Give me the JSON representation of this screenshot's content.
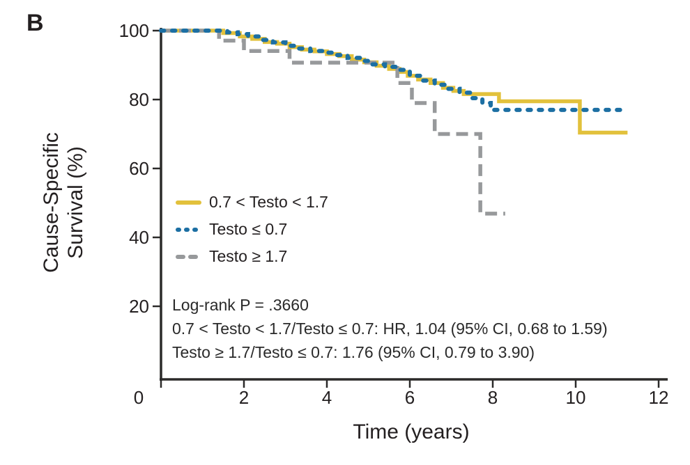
{
  "panel_label": "B",
  "colors": {
    "yellow": "#e2c13c",
    "blue": "#1c6fa3",
    "gray": "#97999b",
    "axis": "#2b2a29",
    "text": "#231f20"
  },
  "chart_data": {
    "type": "line",
    "subtype": "kaplan-meier-step",
    "xlabel": "Time (years)",
    "ylabel": "Cause-Specific Survival (%)",
    "ylabel_lines": [
      "Cause-Specific",
      "Survival (%)"
    ],
    "xlim": [
      0,
      12.25
    ],
    "ylim": [
      0,
      100
    ],
    "xticks": [
      0,
      2,
      4,
      6,
      8,
      10,
      12
    ],
    "yticks": [
      20,
      40,
      60,
      80,
      100
    ],
    "grid": false,
    "legend_position": "inside-left-middle",
    "series": [
      {
        "name": "0.7 < Testo < 1.7",
        "style": "solid",
        "color": "#e2c13c",
        "points": [
          [
            0,
            100
          ],
          [
            1.5,
            99.3
          ],
          [
            1.9,
            98.3
          ],
          [
            2.2,
            97.6
          ],
          [
            2.5,
            96.7
          ],
          [
            2.8,
            96.2
          ],
          [
            3.1,
            95.2
          ],
          [
            3.4,
            94.5
          ],
          [
            3.7,
            94.0
          ],
          [
            4.0,
            93.2
          ],
          [
            4.3,
            92.6
          ],
          [
            4.6,
            91.6
          ],
          [
            4.9,
            90.8
          ],
          [
            5.2,
            89.8
          ],
          [
            5.5,
            88.9
          ],
          [
            5.75,
            88.0
          ],
          [
            5.95,
            86.9
          ],
          [
            6.2,
            85.8
          ],
          [
            6.5,
            84.8
          ],
          [
            6.8,
            83.4
          ],
          [
            7.05,
            82.5
          ],
          [
            7.3,
            81.6
          ],
          [
            8.15,
            79.5
          ],
          [
            10.1,
            70.4
          ],
          [
            11.25,
            70.4
          ]
        ]
      },
      {
        "name": "Testo ≤ 0.7",
        "style": "dotted",
        "color": "#1c6fa3",
        "points": [
          [
            0,
            100
          ],
          [
            1.6,
            99.5
          ],
          [
            1.85,
            99.0
          ],
          [
            2.1,
            98.3
          ],
          [
            2.4,
            97.3
          ],
          [
            2.7,
            96.6
          ],
          [
            3.0,
            95.6
          ],
          [
            3.3,
            94.8
          ],
          [
            3.6,
            94.1
          ],
          [
            3.9,
            93.6
          ],
          [
            4.2,
            92.9
          ],
          [
            4.5,
            92.1
          ],
          [
            4.8,
            91.2
          ],
          [
            5.1,
            90.2
          ],
          [
            5.4,
            89.5
          ],
          [
            5.7,
            88.6
          ],
          [
            6.0,
            86.9
          ],
          [
            6.3,
            85.5
          ],
          [
            6.6,
            84.3
          ],
          [
            6.9,
            83.1
          ],
          [
            7.2,
            82.0
          ],
          [
            7.5,
            80.4
          ],
          [
            7.75,
            79.0
          ],
          [
            7.95,
            77.0
          ],
          [
            11.2,
            77.0
          ]
        ]
      },
      {
        "name": "Testo ≥ 1.7",
        "style": "dashed",
        "color": "#97999b",
        "points": [
          [
            0,
            100
          ],
          [
            1.4,
            97.1
          ],
          [
            2.0,
            94.1
          ],
          [
            3.1,
            90.7
          ],
          [
            5.7,
            84.8
          ],
          [
            6.05,
            79.0
          ],
          [
            6.6,
            70.0
          ],
          [
            7.7,
            46.9
          ],
          [
            8.3,
            46.9
          ]
        ]
      }
    ],
    "annotations": [
      "Log-rank P = .3660",
      "0.7 < Testo < 1.7/Testo ≤ 0.7: HR, 1.04 (95% CI, 0.68 to 1.59)",
      "Testo ≥ 1.7/Testo ≤ 0.7: 1.76 (95% CI, 0.79 to 3.90)"
    ]
  }
}
